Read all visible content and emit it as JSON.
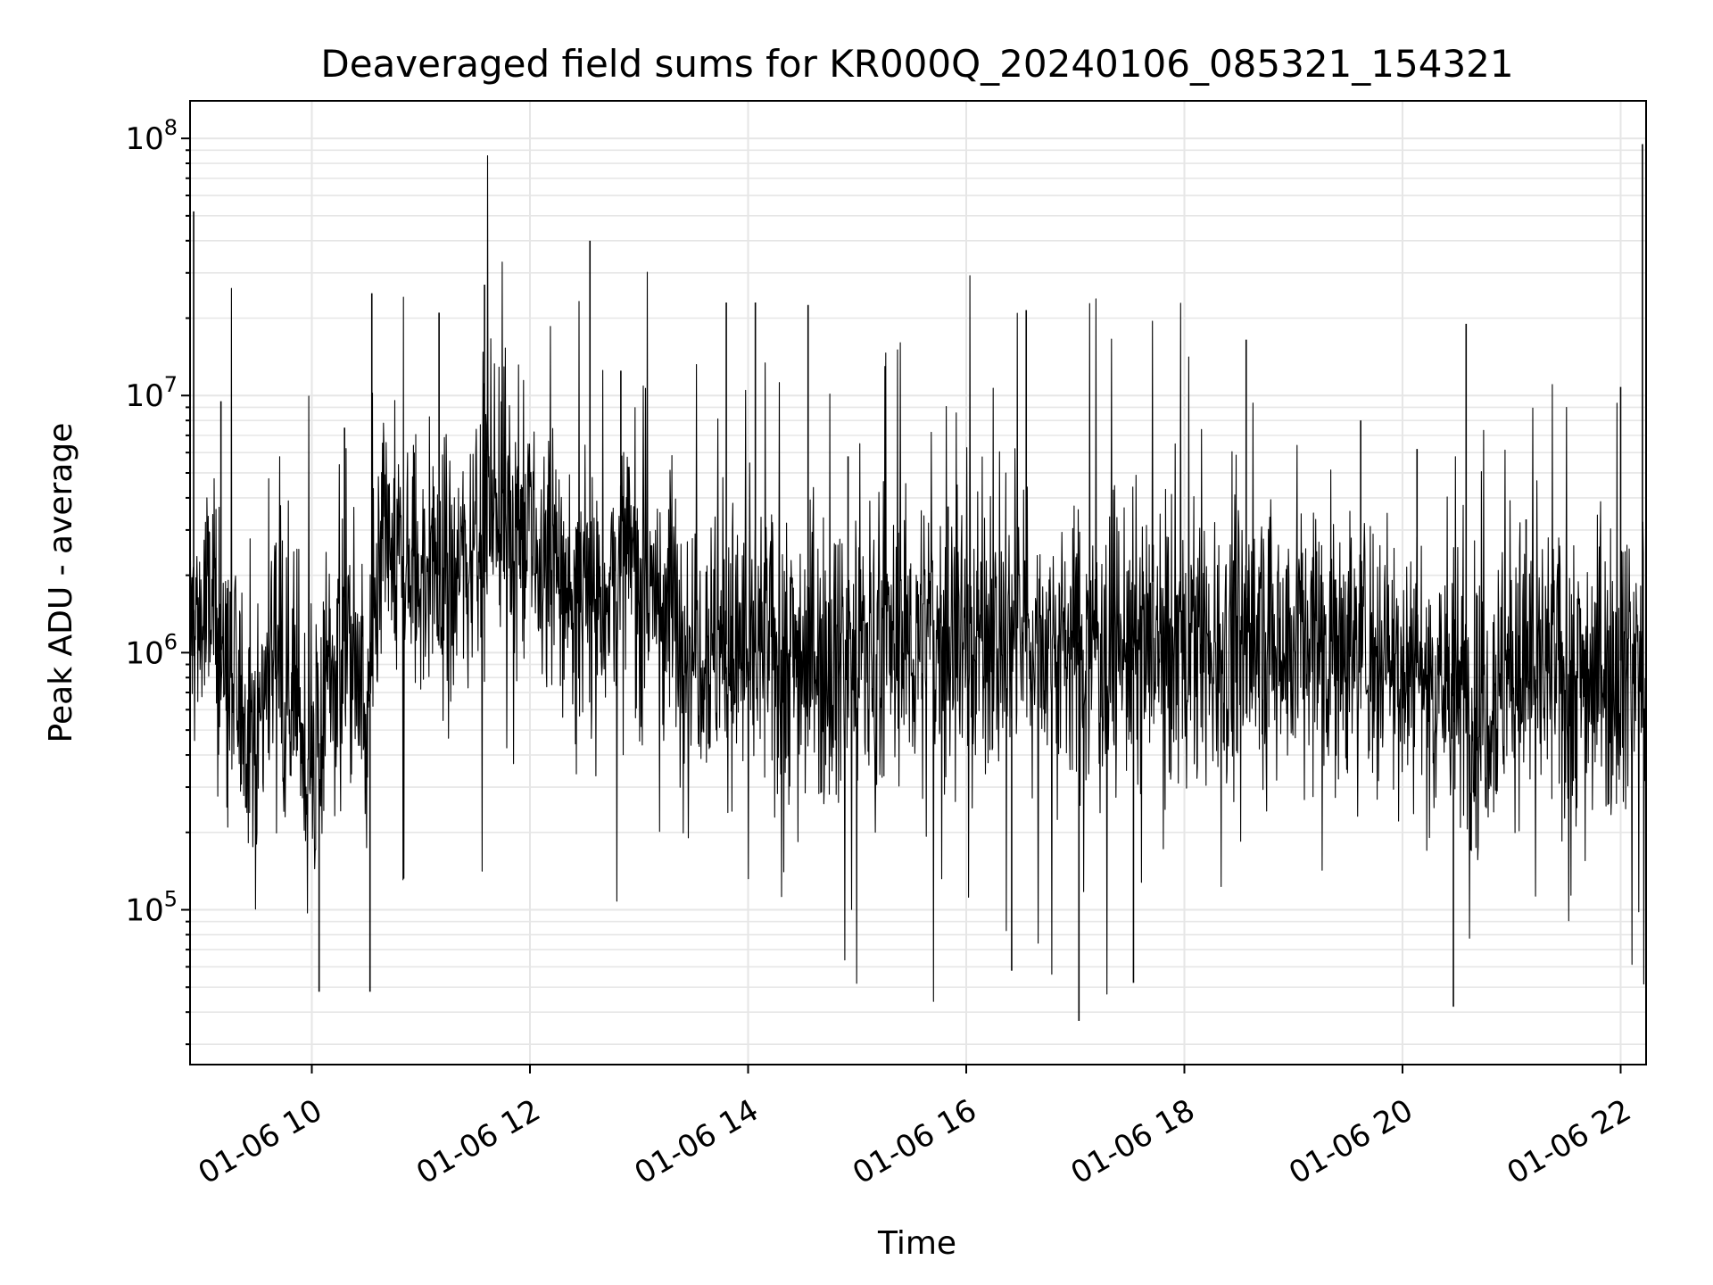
{
  "chart_data": {
    "type": "line",
    "title": "Deaveraged field sums for KR000Q_20240106_085321_154321",
    "xlabel": "Time",
    "ylabel": "Peak ADU - average",
    "yscale": "log",
    "xlim": [
      "2024-01-06 08:53",
      "2024-01-06 22:14"
    ],
    "ylim": [
      25000,
      140000000
    ],
    "grid": true,
    "x_ticks": [
      {
        "value": "2024-01-06 10:00",
        "label": "01-06 10"
      },
      {
        "value": "2024-01-06 12:00",
        "label": "01-06 12"
      },
      {
        "value": "2024-01-06 14:00",
        "label": "01-06 14"
      },
      {
        "value": "2024-01-06 16:00",
        "label": "01-06 16"
      },
      {
        "value": "2024-01-06 18:00",
        "label": "01-06 18"
      },
      {
        "value": "2024-01-06 20:00",
        "label": "01-06 20"
      },
      {
        "value": "2024-01-06 22:00",
        "label": "01-06 22"
      }
    ],
    "y_ticks": [
      {
        "value": 100000,
        "base": "10",
        "exp": "5"
      },
      {
        "value": 1000000,
        "base": "10",
        "exp": "6"
      },
      {
        "value": 10000000,
        "base": "10",
        "exp": "7"
      },
      {
        "value": 100000000,
        "base": "10",
        "exp": "8"
      }
    ],
    "series": [
      {
        "color": "#000000",
        "baseline": [
          [
            "2024-01-06 08:53",
            1200000
          ],
          [
            "2024-01-06 09:05",
            1500000
          ],
          [
            "2024-01-06 09:15",
            700000
          ],
          [
            "2024-01-06 09:30",
            500000
          ],
          [
            "2024-01-06 09:40",
            1300000
          ],
          [
            "2024-01-06 09:50",
            700000
          ],
          [
            "2024-01-06 10:00",
            300000
          ],
          [
            "2024-01-06 10:10",
            800000
          ],
          [
            "2024-01-06 10:20",
            1200000
          ],
          [
            "2024-01-06 10:30",
            500000
          ],
          [
            "2024-01-06 10:40",
            2500000
          ],
          [
            "2024-01-06 11:00",
            2000000
          ],
          [
            "2024-01-06 11:20",
            2000000
          ],
          [
            "2024-01-06 11:40",
            4500000
          ],
          [
            "2024-01-06 12:00",
            2500000
          ],
          [
            "2024-01-06 12:30",
            1500000
          ],
          [
            "2024-01-06 12:55",
            2200000
          ],
          [
            "2024-01-06 13:30",
            1200000
          ],
          [
            "2024-01-06 14:00",
            1000000
          ],
          [
            "2024-01-06 15:00",
            1000000
          ],
          [
            "2024-01-06 16:00",
            1200000
          ],
          [
            "2024-01-06 17:00",
            1100000
          ],
          [
            "2024-01-06 18:00",
            1000000
          ],
          [
            "2024-01-06 19:00",
            1200000
          ],
          [
            "2024-01-06 19:40",
            1100000
          ],
          [
            "2024-01-06 20:10",
            900000
          ],
          [
            "2024-01-06 20:40",
            600000
          ],
          [
            "2024-01-06 21:00",
            900000
          ],
          [
            "2024-01-06 21:30",
            800000
          ],
          [
            "2024-01-06 22:14",
            1000000
          ]
        ],
        "spikes": [
          [
            "2024-01-06 08:55",
            52000000
          ],
          [
            "2024-01-06 09:10",
            9500000
          ],
          [
            "2024-01-06 10:04",
            48000
          ],
          [
            "2024-01-06 10:18",
            7500000
          ],
          [
            "2024-01-06 10:33",
            25000000
          ],
          [
            "2024-01-06 10:32",
            48000
          ],
          [
            "2024-01-06 11:10",
            21000000
          ],
          [
            "2024-01-06 11:35",
            27000000
          ],
          [
            "2024-01-06 12:33",
            40000000
          ],
          [
            "2024-01-06 12:50",
            12500000
          ],
          [
            "2024-01-06 13:48",
            23000000
          ],
          [
            "2024-01-06 14:04",
            23000000
          ],
          [
            "2024-01-06 14:33",
            22500000
          ],
          [
            "2024-01-06 14:55",
            5800000
          ],
          [
            "2024-01-06 15:50",
            3700000
          ],
          [
            "2024-01-06 16:33",
            21500000
          ],
          [
            "2024-01-06 16:25",
            58000
          ],
          [
            "2024-01-06 17:02",
            37000
          ],
          [
            "2024-01-06 17:32",
            52000
          ],
          [
            "2024-01-06 18:34",
            16500000
          ],
          [
            "2024-01-06 19:37",
            8000000
          ],
          [
            "2024-01-06 20:08",
            6200000
          ],
          [
            "2024-01-06 20:28",
            42000
          ],
          [
            "2024-01-06 20:35",
            19000000
          ],
          [
            "2024-01-06 21:08",
            3300000
          ],
          [
            "2024-01-06 22:00",
            10800000
          ],
          [
            "2024-01-06 22:12",
            95000000
          ]
        ]
      }
    ]
  }
}
